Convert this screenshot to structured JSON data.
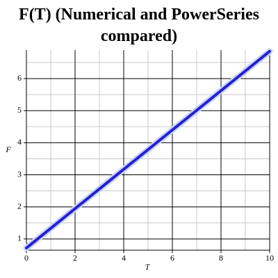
{
  "chart_data": {
    "type": "line",
    "title": "F(T) (Numerical and PowerSeries compared)",
    "x_label": "T",
    "y_label": "F",
    "x": [
      0,
      10
    ],
    "series": [
      {
        "name": "Numerical",
        "color": "#c4d6fa",
        "values": [
          0.72,
          6.85
        ]
      },
      {
        "name": "PowerSeries",
        "color": "#2a1ed0",
        "values": [
          0.72,
          6.85
        ]
      }
    ],
    "xlim": [
      0,
      10
    ],
    "xticks": [
      0,
      2,
      4,
      6,
      8,
      10
    ],
    "x_minor_ticks": [
      1,
      3,
      5,
      7,
      9
    ],
    "ylim": [
      0.65,
      6.89
    ],
    "yticks": [
      1,
      2,
      3,
      4,
      5,
      6
    ],
    "y_minor_ticks": [
      1.5,
      2.5,
      3.5,
      4.5,
      5.5,
      6.5
    ],
    "grid": true
  }
}
